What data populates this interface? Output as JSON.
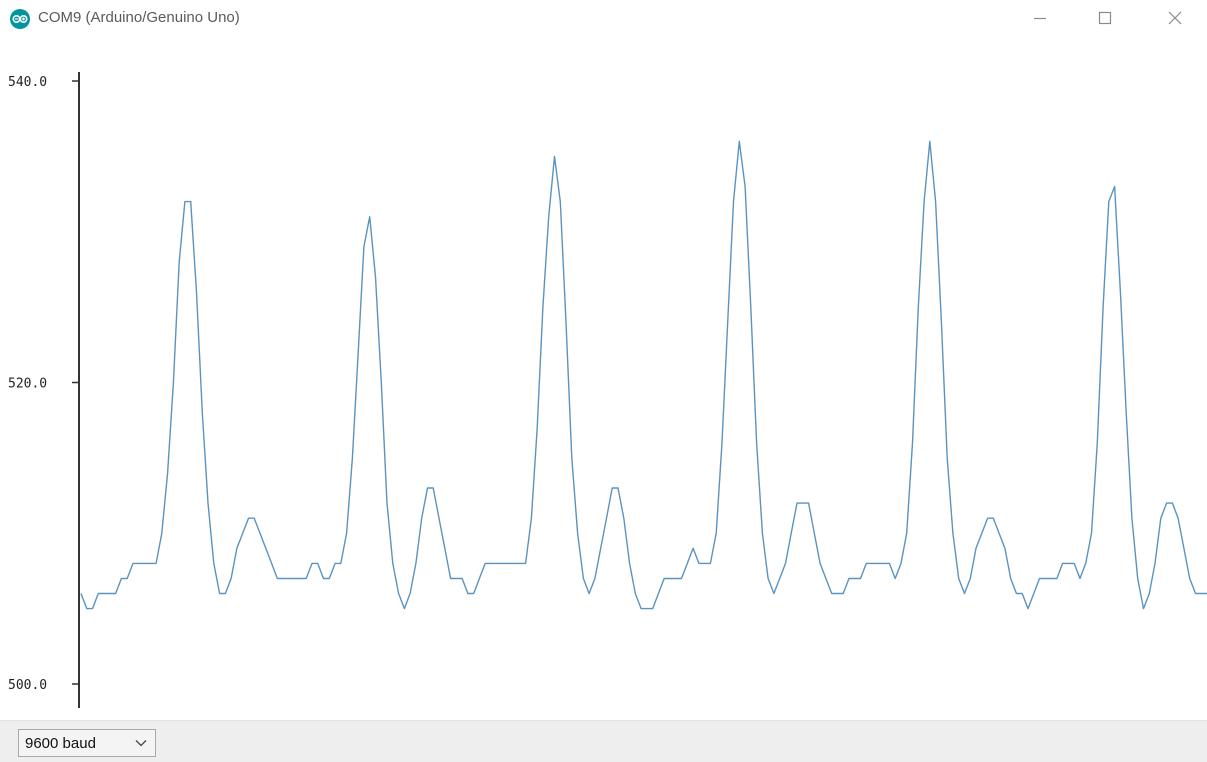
{
  "window": {
    "title": "COM9 (Arduino/Genuino Uno)",
    "icon": "arduino-logo-icon",
    "controls": [
      "minimize-icon",
      "maximize-icon",
      "close-icon"
    ]
  },
  "footer": {
    "baud_rate": "9600 baud"
  },
  "colors": {
    "series": "#5b93bf",
    "axis": "#333333",
    "logo": "#00979c"
  },
  "chart_data": {
    "type": "line",
    "ylim": [
      500,
      540
    ],
    "yticks": [
      500,
      520,
      540
    ],
    "ytick_labels": [
      "500.0",
      "520.0",
      "540.0"
    ],
    "grid": false,
    "series": [
      {
        "values": [
          506,
          505,
          505,
          506,
          506,
          506,
          506,
          507,
          507,
          508,
          508,
          508,
          508,
          508,
          510,
          514,
          520,
          528,
          532,
          532,
          526,
          518,
          512,
          508,
          506,
          506,
          507,
          509,
          510,
          511,
          511,
          510,
          509,
          508,
          507,
          507,
          507,
          507,
          507,
          507,
          508,
          508,
          507,
          507,
          508,
          508,
          510,
          515,
          522,
          529,
          531,
          527,
          520,
          512,
          508,
          506,
          505,
          506,
          508,
          511,
          513,
          513,
          511,
          509,
          507,
          507,
          507,
          506,
          506,
          507,
          508,
          508,
          508,
          508,
          508,
          508,
          508,
          508,
          511,
          517,
          525,
          531,
          535,
          532,
          524,
          515,
          510,
          507,
          506,
          507,
          509,
          511,
          513,
          513,
          511,
          508,
          506,
          505,
          505,
          505,
          506,
          507,
          507,
          507,
          507,
          508,
          509,
          508,
          508,
          508,
          510,
          516,
          524,
          532,
          536,
          533,
          525,
          516,
          510,
          507,
          506,
          507,
          508,
          510,
          512,
          512,
          512,
          510,
          508,
          507,
          506,
          506,
          506,
          507,
          507,
          507,
          508,
          508,
          508,
          508,
          508,
          507,
          508,
          510,
          516,
          525,
          532,
          536,
          532,
          524,
          515,
          510,
          507,
          506,
          507,
          509,
          510,
          511,
          511,
          510,
          509,
          507,
          506,
          506,
          505,
          506,
          507,
          507,
          507,
          507,
          508,
          508,
          508,
          507,
          508,
          510,
          516,
          525,
          532,
          533,
          526,
          518,
          511,
          507,
          505,
          506,
          508,
          511,
          512,
          512,
          511,
          509,
          507,
          506,
          506,
          506
        ]
      }
    ]
  }
}
